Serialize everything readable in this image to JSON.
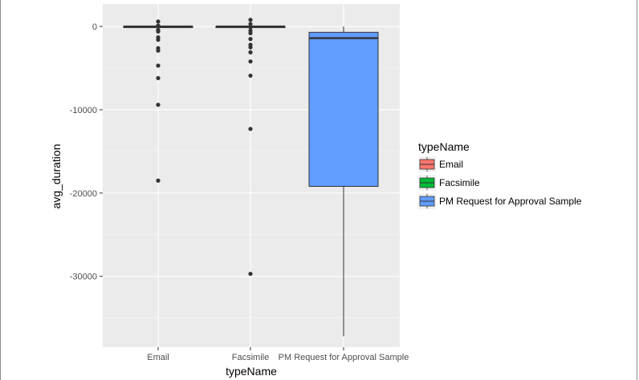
{
  "chart_data": {
    "type": "boxplot",
    "xlabel": "typeName",
    "ylabel": "avg_duration",
    "ylim": [
      -38500,
      2700
    ],
    "yticks": [
      0,
      -10000,
      -20000,
      -30000
    ],
    "ytick_labels": [
      "0",
      "-10000",
      "-20000",
      "-30000"
    ],
    "grid": true,
    "legend": {
      "title": "typeName",
      "position": "right",
      "entries": [
        "Email",
        "Facsimile",
        "PM Request for Approval Sample"
      ]
    },
    "categories": [
      "Email",
      "Facsimile",
      "PM Request for Approval Sample"
    ],
    "colors": [
      "#F8766D",
      "#00BA38",
      "#619CFF"
    ],
    "boxes": [
      {
        "name": "Email",
        "q1": -30,
        "median": 0,
        "q3": 10,
        "whisker_low": -60,
        "whisker_high": 40,
        "outliers": [
          600,
          100,
          -400,
          -600,
          -1300,
          -1600,
          -2600,
          -2900,
          -4700,
          -6200,
          -9400,
          -18500
        ]
      },
      {
        "name": "Facsimile",
        "q1": -30,
        "median": 0,
        "q3": 10,
        "whisker_low": -60,
        "whisker_high": 40,
        "outliers": [
          800,
          300,
          -100,
          -500,
          -800,
          -1500,
          -2200,
          -2500,
          -3100,
          -4200,
          -5900,
          -12300,
          -29700
        ]
      },
      {
        "name": "PM Request for Approval Sample",
        "q1": -19200,
        "median": -1400,
        "q3": -700,
        "whisker_low": -37200,
        "whisker_high": 0,
        "outliers": []
      }
    ]
  }
}
